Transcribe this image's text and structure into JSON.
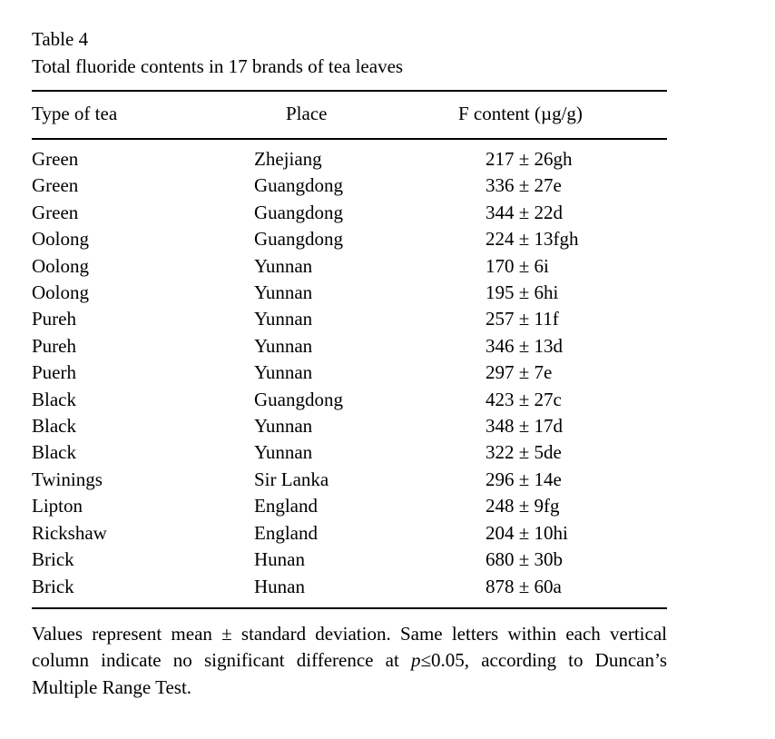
{
  "table": {
    "label": "Table 4",
    "caption": "Total fluoride contents in 17 brands of tea leaves",
    "columns": [
      "Type of tea",
      "Place",
      "F content (µg/g)"
    ],
    "rows": [
      {
        "type": "Green",
        "place": "Zhejiang",
        "f_content": "217 ± 26gh"
      },
      {
        "type": "Green",
        "place": "Guangdong",
        "f_content": "336 ± 27e"
      },
      {
        "type": "Green",
        "place": "Guangdong",
        "f_content": "344 ± 22d"
      },
      {
        "type": "Oolong",
        "place": "Guangdong",
        "f_content": "224 ± 13fgh"
      },
      {
        "type": "Oolong",
        "place": "Yunnan",
        "f_content": "170 ± 6i"
      },
      {
        "type": "Oolong",
        "place": "Yunnan",
        "f_content": "195 ± 6hi"
      },
      {
        "type": "Pureh",
        "place": "Yunnan",
        "f_content": "257 ± 11f"
      },
      {
        "type": "Pureh",
        "place": "Yunnan",
        "f_content": "346 ± 13d"
      },
      {
        "type": "Puerh",
        "place": "Yunnan",
        "f_content": "297 ± 7e"
      },
      {
        "type": "Black",
        "place": "Guangdong",
        "f_content": "423 ± 27c"
      },
      {
        "type": "Black",
        "place": "Yunnan",
        "f_content": "348 ± 17d"
      },
      {
        "type": "Black",
        "place": "Yunnan",
        "f_content": "322 ± 5de"
      },
      {
        "type": "Twinings",
        "place": "Sir Lanka",
        "f_content": "296 ± 14e"
      },
      {
        "type": "Lipton",
        "place": "England",
        "f_content": "248 ± 9fg"
      },
      {
        "type": "Rickshaw",
        "place": "England",
        "f_content": "204 ± 10hi"
      },
      {
        "type": "Brick",
        "place": "Hunan",
        "f_content": "680 ± 30b"
      },
      {
        "type": "Brick",
        "place": "Hunan",
        "f_content": "878 ± 60a"
      }
    ]
  },
  "footnote": {
    "part1": "Values represent mean ± standard deviation. Same letters within each vertical column indicate no significant difference at ",
    "p": "p",
    "part2": "≤0.05, according to Duncan’s Multiple Range Test."
  }
}
